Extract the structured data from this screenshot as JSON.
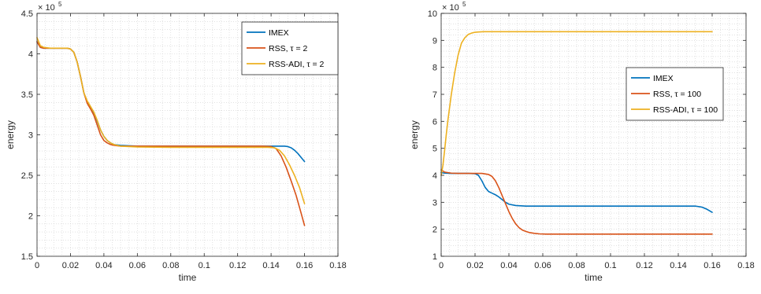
{
  "chart_data": [
    {
      "type": "line",
      "xlabel": "time",
      "ylabel": "energy",
      "xlim": [
        0,
        0.18
      ],
      "ylim": [
        1.5,
        4.5
      ],
      "xticks": [
        0,
        0.02,
        0.04,
        0.06,
        0.08,
        0.1,
        0.12,
        0.14,
        0.16,
        0.18
      ],
      "xtick_labels": [
        "0",
        "0.02",
        "0.04",
        "0.06",
        "0.08",
        "0.1",
        "0.12",
        "0.14",
        "0.16",
        "0.18"
      ],
      "yticks": [
        1.5,
        2,
        2.5,
        3,
        3.5,
        4,
        4.5
      ],
      "ytick_labels": [
        "1.5",
        "2",
        "2.5",
        "3",
        "3.5",
        "4",
        "4.5"
      ],
      "y_exponent": "× 10",
      "y_exponent_power": "5",
      "grid": "minor dotted",
      "legend_position": "top-right",
      "series": [
        {
          "name": "IMEX",
          "color": "#0072BD",
          "x": [
            0,
            0.002,
            0.004,
            0.008,
            0.012,
            0.016,
            0.018,
            0.02,
            0.022,
            0.024,
            0.026,
            0.028,
            0.03,
            0.032,
            0.034,
            0.036,
            0.038,
            0.04,
            0.042,
            0.044,
            0.046,
            0.05,
            0.055,
            0.06,
            0.08,
            0.1,
            0.12,
            0.14,
            0.145,
            0.148,
            0.15,
            0.152,
            0.154,
            0.156,
            0.158,
            0.16
          ],
          "y": [
            4.15,
            4.08,
            4.07,
            4.07,
            4.07,
            4.07,
            4.07,
            4.06,
            4.02,
            3.9,
            3.72,
            3.52,
            3.4,
            3.34,
            3.27,
            3.17,
            3.06,
            2.98,
            2.93,
            2.9,
            2.88,
            2.87,
            2.865,
            2.86,
            2.86,
            2.86,
            2.86,
            2.86,
            2.86,
            2.86,
            2.855,
            2.84,
            2.81,
            2.77,
            2.72,
            2.67
          ]
        },
        {
          "name": "RSS, τ = 2",
          "color": "#D95319",
          "x": [
            0,
            0.002,
            0.004,
            0.008,
            0.012,
            0.016,
            0.018,
            0.02,
            0.022,
            0.024,
            0.026,
            0.028,
            0.03,
            0.032,
            0.034,
            0.036,
            0.038,
            0.04,
            0.042,
            0.044,
            0.046,
            0.05,
            0.055,
            0.06,
            0.08,
            0.1,
            0.12,
            0.135,
            0.14,
            0.143,
            0.146,
            0.149,
            0.152,
            0.155,
            0.158,
            0.16
          ],
          "y": [
            4.15,
            4.08,
            4.07,
            4.07,
            4.07,
            4.07,
            4.07,
            4.06,
            4.02,
            3.9,
            3.72,
            3.52,
            3.39,
            3.32,
            3.24,
            3.12,
            3.0,
            2.93,
            2.9,
            2.88,
            2.87,
            2.86,
            2.86,
            2.86,
            2.86,
            2.86,
            2.86,
            2.86,
            2.855,
            2.83,
            2.74,
            2.6,
            2.43,
            2.25,
            2.03,
            1.88
          ]
        },
        {
          "name": "RSS-ADI, τ = 2",
          "color": "#EDB120",
          "x": [
            0,
            0.002,
            0.004,
            0.008,
            0.012,
            0.016,
            0.018,
            0.02,
            0.022,
            0.024,
            0.026,
            0.028,
            0.03,
            0.032,
            0.034,
            0.036,
            0.038,
            0.04,
            0.042,
            0.044,
            0.046,
            0.05,
            0.055,
            0.06,
            0.08,
            0.1,
            0.12,
            0.138,
            0.142,
            0.145,
            0.148,
            0.151,
            0.154,
            0.157,
            0.16
          ],
          "y": [
            4.2,
            4.1,
            4.08,
            4.07,
            4.07,
            4.07,
            4.07,
            4.06,
            4.02,
            3.9,
            3.72,
            3.52,
            3.42,
            3.35,
            3.28,
            3.18,
            3.06,
            2.98,
            2.93,
            2.9,
            2.88,
            2.86,
            2.855,
            2.85,
            2.845,
            2.845,
            2.845,
            2.845,
            2.84,
            2.81,
            2.74,
            2.63,
            2.5,
            2.35,
            2.15
          ]
        }
      ]
    },
    {
      "type": "line",
      "xlabel": "time",
      "ylabel": "energy",
      "xlim": [
        0,
        0.18
      ],
      "ylim": [
        1,
        10
      ],
      "xticks": [
        0,
        0.02,
        0.04,
        0.06,
        0.08,
        0.1,
        0.12,
        0.14,
        0.16,
        0.18
      ],
      "xtick_labels": [
        "0",
        "0.02",
        "0.04",
        "0.06",
        "0.08",
        "0.1",
        "0.12",
        "0.14",
        "0.16",
        "0.18"
      ],
      "yticks": [
        1,
        2,
        3,
        4,
        5,
        6,
        7,
        8,
        9,
        10
      ],
      "ytick_labels": [
        "1",
        "2",
        "3",
        "4",
        "5",
        "6",
        "7",
        "8",
        "9",
        "10"
      ],
      "y_exponent": "× 10",
      "y_exponent_power": "5",
      "grid": "minor dotted",
      "legend_position": "top-right",
      "series": [
        {
          "name": "IMEX",
          "color": "#0072BD",
          "x": [
            0,
            0.002,
            0.006,
            0.01,
            0.016,
            0.02,
            0.022,
            0.024,
            0.026,
            0.028,
            0.03,
            0.032,
            0.034,
            0.036,
            0.038,
            0.04,
            0.044,
            0.05,
            0.06,
            0.08,
            0.1,
            0.12,
            0.14,
            0.15,
            0.154,
            0.157,
            0.16
          ],
          "y": [
            4.1,
            4.08,
            4.07,
            4.07,
            4.07,
            4.06,
            4.0,
            3.8,
            3.55,
            3.4,
            3.34,
            3.28,
            3.2,
            3.1,
            3.0,
            2.93,
            2.88,
            2.86,
            2.86,
            2.86,
            2.86,
            2.86,
            2.86,
            2.86,
            2.82,
            2.74,
            2.63
          ]
        },
        {
          "name": "RSS, τ = 100",
          "color": "#D95319",
          "x": [
            0,
            0.002,
            0.006,
            0.01,
            0.016,
            0.02,
            0.024,
            0.028,
            0.03,
            0.032,
            0.034,
            0.036,
            0.038,
            0.04,
            0.042,
            0.044,
            0.046,
            0.048,
            0.05,
            0.052,
            0.055,
            0.058,
            0.062,
            0.07,
            0.08,
            0.1,
            0.12,
            0.14,
            0.16
          ],
          "y": [
            4.2,
            4.12,
            4.08,
            4.07,
            4.07,
            4.07,
            4.07,
            4.03,
            3.96,
            3.8,
            3.55,
            3.25,
            2.95,
            2.65,
            2.4,
            2.2,
            2.06,
            1.97,
            1.92,
            1.88,
            1.85,
            1.83,
            1.82,
            1.82,
            1.82,
            1.82,
            1.82,
            1.82,
            1.82
          ]
        },
        {
          "name": "RSS-ADI, τ = 100",
          "color": "#EDB120",
          "x": [
            0,
            0.001,
            0.002,
            0.003,
            0.004,
            0.006,
            0.008,
            0.01,
            0.012,
            0.014,
            0.016,
            0.018,
            0.02,
            0.022,
            0.025,
            0.03,
            0.04,
            0.06,
            0.08,
            0.1,
            0.12,
            0.14,
            0.16
          ],
          "y": [
            4.0,
            4.35,
            4.9,
            5.5,
            6.05,
            7.0,
            7.8,
            8.45,
            8.9,
            9.1,
            9.22,
            9.27,
            9.3,
            9.31,
            9.32,
            9.32,
            9.32,
            9.32,
            9.32,
            9.32,
            9.32,
            9.32,
            9.32
          ]
        }
      ]
    }
  ]
}
